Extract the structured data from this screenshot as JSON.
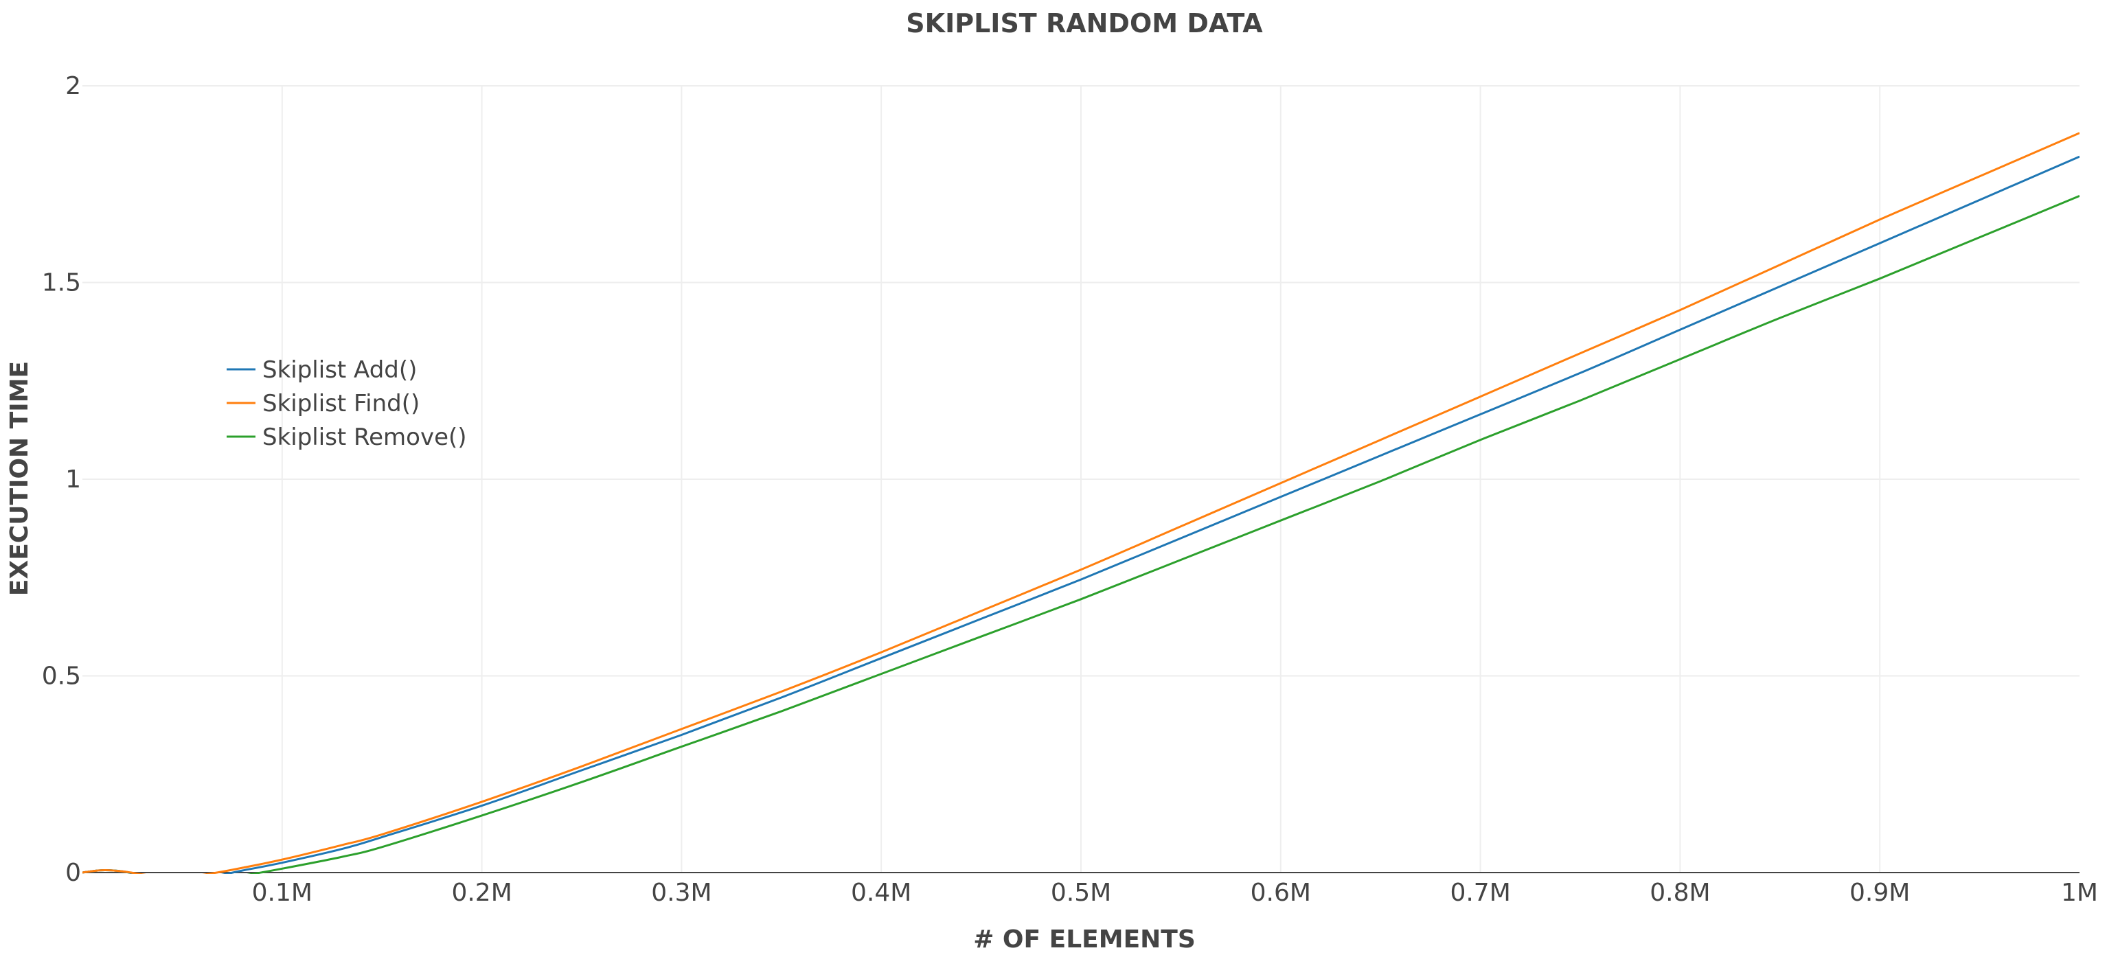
{
  "chart_data": {
    "type": "line",
    "title": "SKIPLIST RANDOM DATA",
    "xlabel": "# OF ELEMENTS",
    "ylabel": "EXECUTION TIME",
    "xlim": [
      0,
      1000000
    ],
    "ylim": [
      0,
      2
    ],
    "x_ticks": [
      {
        "value": 100000,
        "label": "0.1M"
      },
      {
        "value": 200000,
        "label": "0.2M"
      },
      {
        "value": 300000,
        "label": "0.3M"
      },
      {
        "value": 400000,
        "label": "0.4M"
      },
      {
        "value": 500000,
        "label": "0.5M"
      },
      {
        "value": 600000,
        "label": "0.6M"
      },
      {
        "value": 700000,
        "label": "0.7M"
      },
      {
        "value": 800000,
        "label": "0.8M"
      },
      {
        "value": 900000,
        "label": "0.9M"
      },
      {
        "value": 1000000,
        "label": "1M"
      }
    ],
    "y_ticks": [
      {
        "value": 0,
        "label": "0"
      },
      {
        "value": 0.5,
        "label": "0.5"
      },
      {
        "value": 1,
        "label": "1"
      },
      {
        "value": 1.5,
        "label": "1.5"
      },
      {
        "value": 2,
        "label": "2"
      }
    ],
    "grid": true,
    "legend_position": "top-left",
    "x": [
      0,
      10000,
      20000,
      35000,
      50000,
      65000,
      80000,
      100000,
      130000,
      150000,
      200000,
      250000,
      300000,
      350000,
      400000,
      450000,
      500000,
      550000,
      600000,
      650000,
      700000,
      750000,
      800000,
      850000,
      900000,
      950000,
      1000000
    ],
    "series": [
      {
        "name": "Skiplist Add()",
        "color": "#1f77b4",
        "values": [
          0,
          0.006,
          0.003,
          -0.01,
          -0.015,
          -0.01,
          0.005,
          0.025,
          0.06,
          0.09,
          0.17,
          0.26,
          0.35,
          0.445,
          0.545,
          0.645,
          0.745,
          0.85,
          0.955,
          1.06,
          1.165,
          1.27,
          1.38,
          1.49,
          1.6,
          1.71,
          1.82
        ]
      },
      {
        "name": "Skiplist Find()",
        "color": "#ff7f0e",
        "values": [
          0,
          0.006,
          0.003,
          -0.008,
          -0.012,
          -0.002,
          0.012,
          0.033,
          0.07,
          0.097,
          0.18,
          0.27,
          0.365,
          0.46,
          0.56,
          0.665,
          0.77,
          0.88,
          0.99,
          1.1,
          1.21,
          1.32,
          1.43,
          1.545,
          1.66,
          1.77,
          1.88
        ]
      },
      {
        "name": "Skiplist Remove()",
        "color": "#2ca02c",
        "values": [
          0,
          0.006,
          0.003,
          -0.012,
          -0.02,
          -0.018,
          -0.008,
          0.01,
          0.04,
          0.065,
          0.145,
          0.23,
          0.32,
          0.41,
          0.505,
          0.6,
          0.695,
          0.795,
          0.895,
          0.995,
          1.1,
          1.2,
          1.305,
          1.41,
          1.51,
          1.615,
          1.72
        ]
      }
    ]
  }
}
